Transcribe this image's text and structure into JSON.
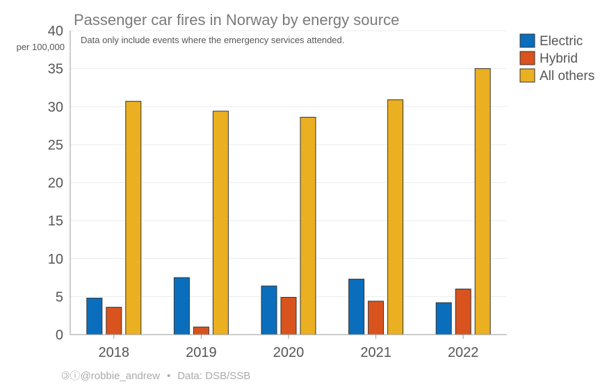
{
  "chart_data": {
    "type": "bar",
    "title": "Passenger car fires in Norway by energy source",
    "subtitle": "Data only include events where the emergency services attended.",
    "ylabel": "per 100,000",
    "xlabel": "",
    "categories": [
      "2018",
      "2019",
      "2020",
      "2021",
      "2022"
    ],
    "series": [
      {
        "name": "Electric",
        "color": "#0a6ebd",
        "values": [
          4.8,
          7.5,
          6.4,
          7.3,
          4.2
        ]
      },
      {
        "name": "Hybrid",
        "color": "#d9531e",
        "values": [
          3.6,
          1.0,
          4.9,
          4.4,
          6.0
        ]
      },
      {
        "name": "All others",
        "color": "#ebb021",
        "values": [
          30.7,
          29.4,
          28.6,
          30.9,
          35.0
        ]
      }
    ],
    "ylim": [
      0,
      40
    ],
    "yticks": [
      "0",
      "5",
      "10",
      "15",
      "20",
      "25",
      "30",
      "35",
      "40"
    ],
    "grid": true,
    "legend": "top-right"
  },
  "footer": {
    "license_icons": "🄯ⓘ",
    "handle": "@robbie_andrew",
    "separator": "•",
    "source": "Data: DSB/SSB"
  }
}
